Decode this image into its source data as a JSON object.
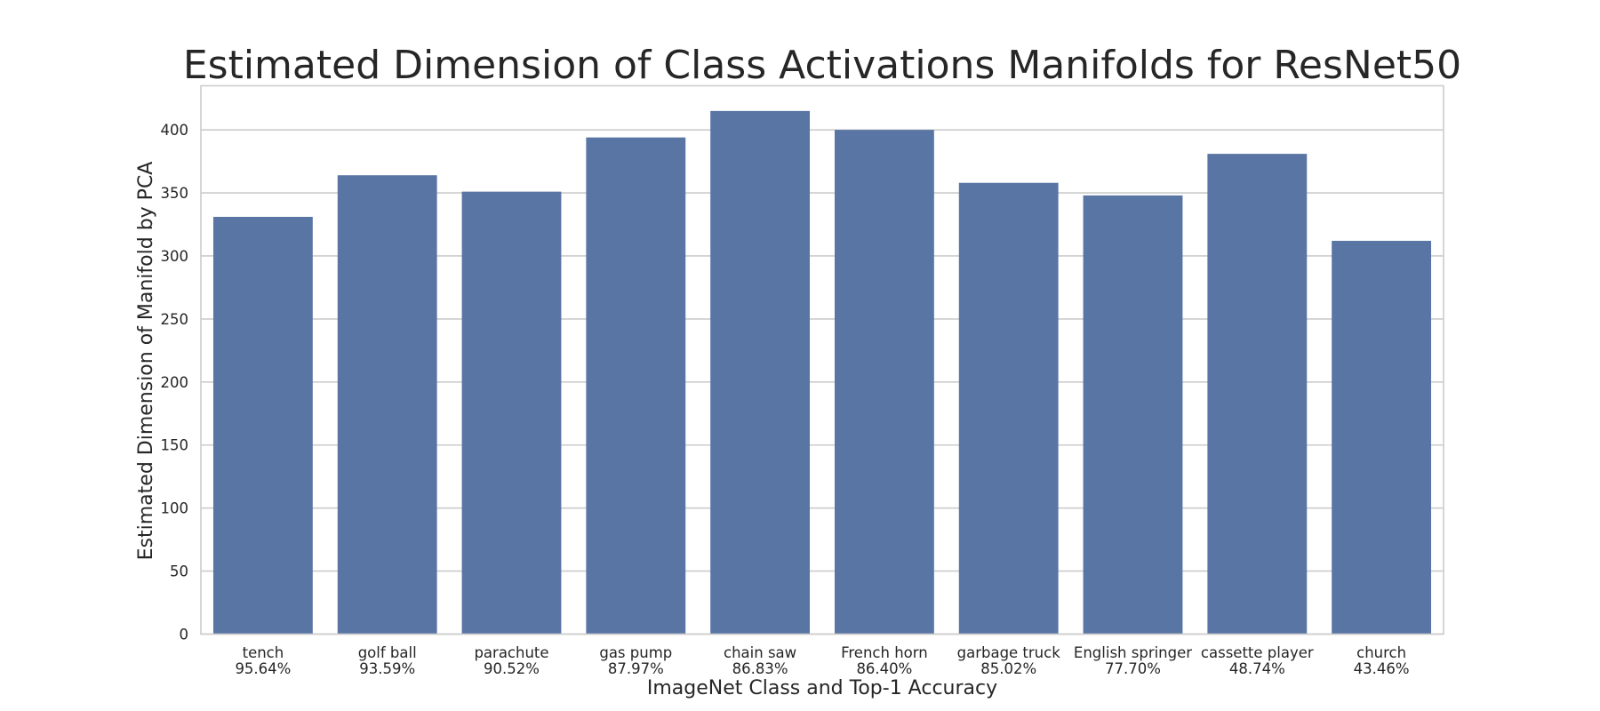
{
  "chart_data": {
    "type": "bar",
    "title": "Estimated Dimension of Class Activations Manifolds for ResNet50",
    "xlabel": "ImageNet Class and Top-1 Accuracy",
    "ylabel": "Estimated Dimension of Manifold by PCA",
    "categories": [
      [
        "tench",
        "95.64%"
      ],
      [
        "golf ball",
        "93.59%"
      ],
      [
        "parachute",
        "90.52%"
      ],
      [
        "gas pump",
        "87.97%"
      ],
      [
        "chain saw",
        "86.83%"
      ],
      [
        "French horn",
        "86.40%"
      ],
      [
        "garbage truck",
        "85.02%"
      ],
      [
        "English springer",
        "77.70%"
      ],
      [
        "cassette player",
        "48.74%"
      ],
      [
        "church",
        "43.46%"
      ]
    ],
    "values": [
      331,
      364,
      351,
      394,
      415,
      400,
      358,
      348,
      381,
      312
    ],
    "ylim": [
      0,
      435
    ],
    "yticks": [
      0,
      50,
      100,
      150,
      200,
      250,
      300,
      350,
      400
    ],
    "grid": true,
    "colors": {
      "bar": "#5975a4",
      "grid": "#cccccc",
      "frame": "#cccccc",
      "text": "#262626"
    }
  }
}
